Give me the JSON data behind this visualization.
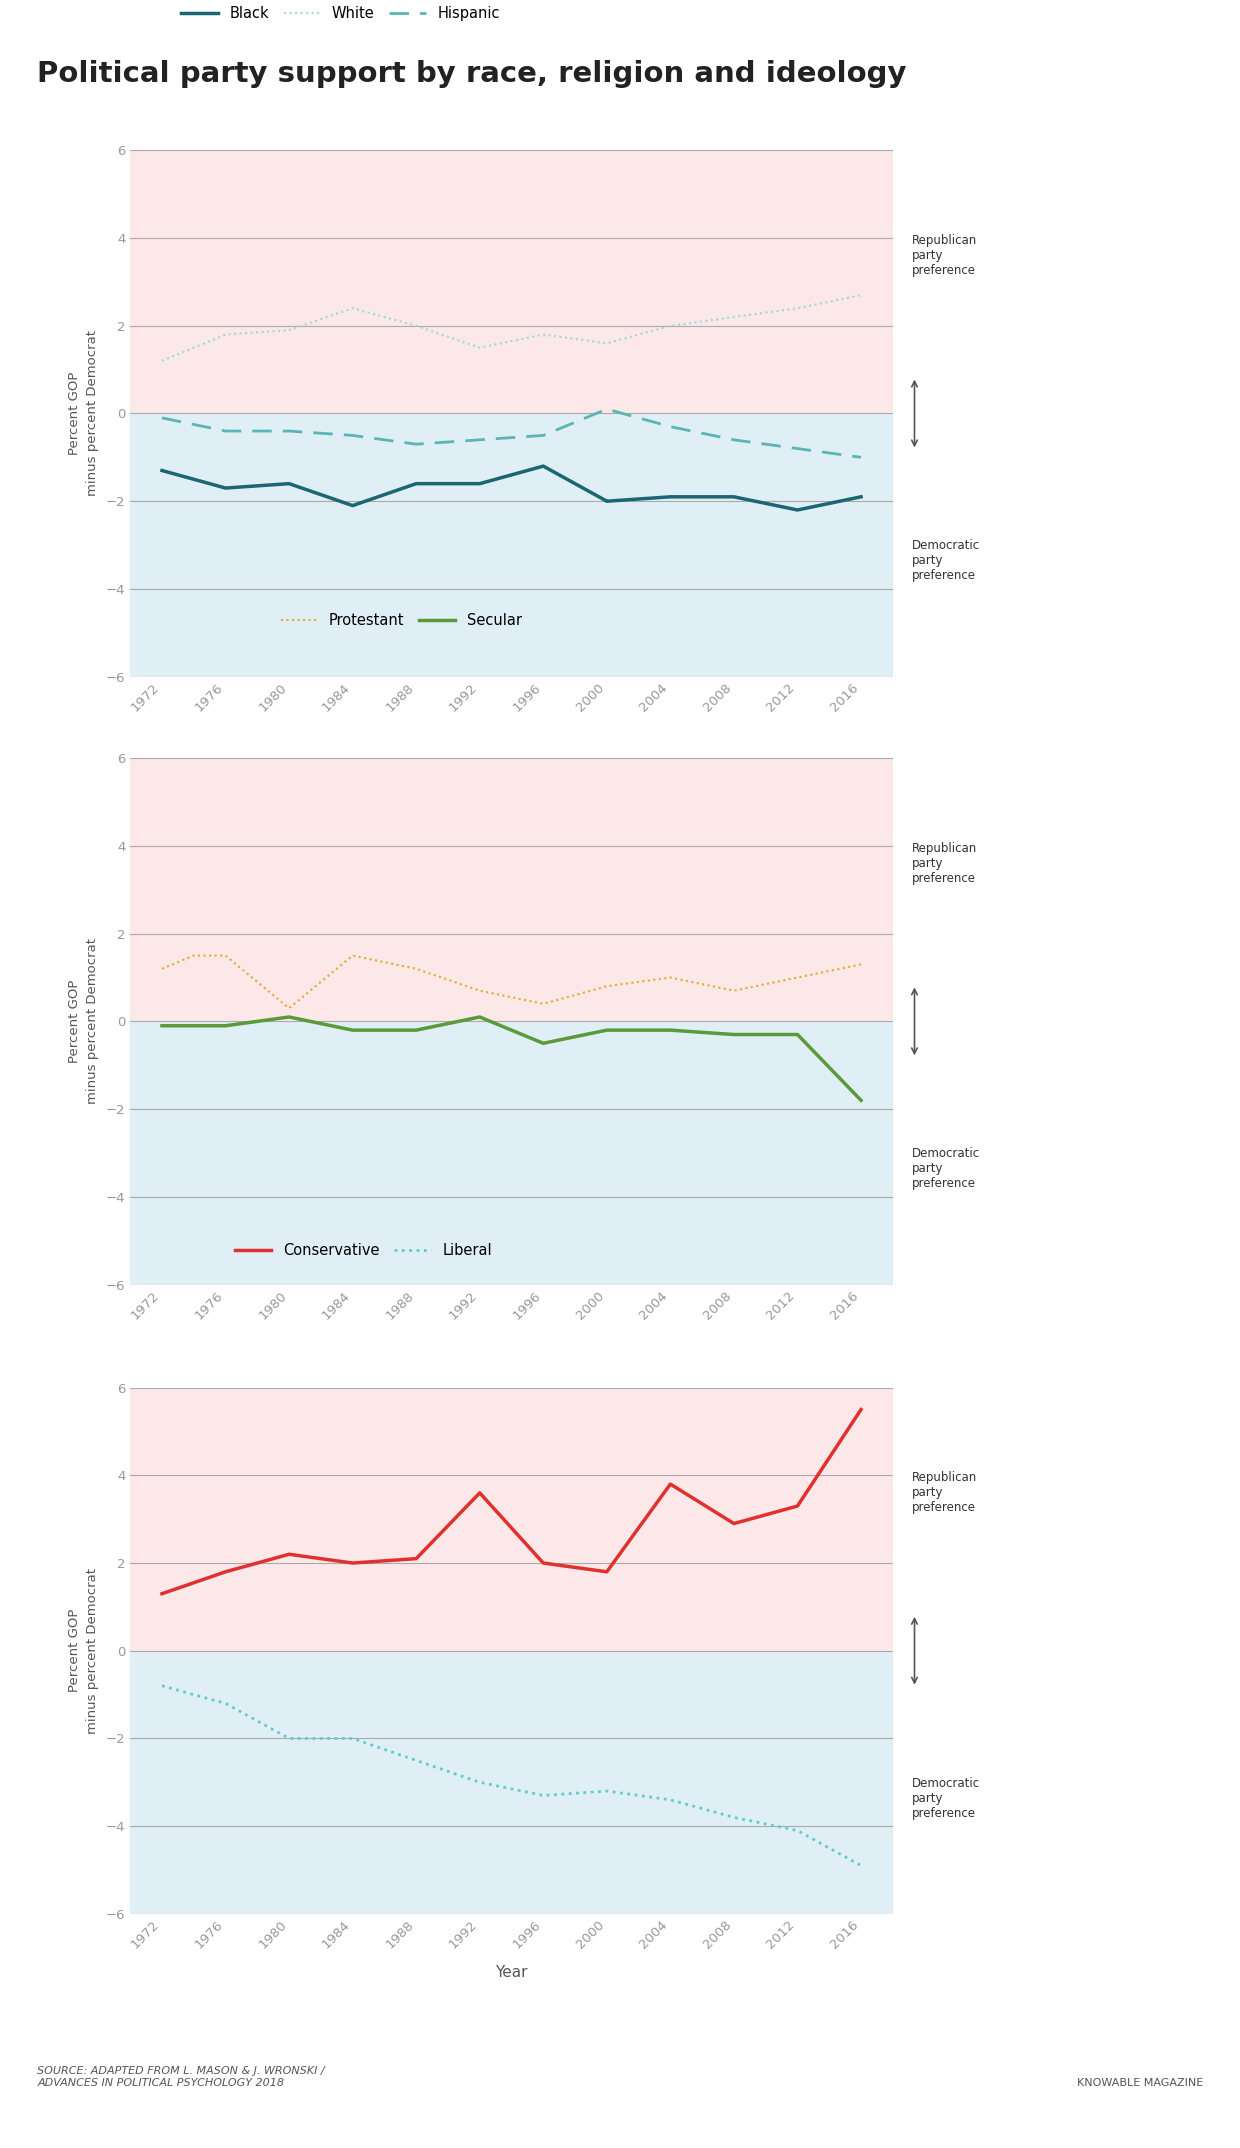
{
  "title": "Political party support by race, religion and ideology",
  "ylabel": "Percent GOP\nminus percent Democrat",
  "xlabel": "Year",
  "years": [
    1972,
    1976,
    1980,
    1984,
    1988,
    1992,
    1996,
    2000,
    2004,
    2008,
    2012,
    2016
  ],
  "chart1": {
    "black": [
      -1.3,
      -1.7,
      -1.6,
      -2.1,
      -1.6,
      -1.6,
      -1.2,
      -2.0,
      -1.9,
      -1.9,
      -2.2,
      -1.9
    ],
    "white": [
      1.2,
      1.8,
      1.9,
      2.4,
      2.0,
      1.5,
      1.8,
      1.6,
      2.0,
      2.2,
      2.4,
      2.7
    ],
    "hispanic": [
      -0.1,
      -0.4,
      -0.4,
      -0.5,
      -0.7,
      -0.6,
      -0.5,
      0.1,
      -0.3,
      -0.6,
      -0.8,
      -1.0
    ]
  },
  "chart2": {
    "protestant_years": [
      1972,
      1974,
      1976,
      1978,
      1980,
      1984,
      1988,
      1992,
      1996,
      2000,
      2004,
      2008,
      2012,
      2016
    ],
    "protestant": [
      1.2,
      1.5,
      1.5,
      0.9,
      0.3,
      1.5,
      1.2,
      0.7,
      0.4,
      0.8,
      1.0,
      0.7,
      1.0,
      1.3
    ],
    "secular_years": [
      1972,
      1976,
      1980,
      1984,
      1988,
      1992,
      1996,
      2000,
      2004,
      2008,
      2012,
      2016
    ],
    "secular": [
      -0.1,
      -0.1,
      0.1,
      -0.2,
      -0.2,
      0.1,
      -0.5,
      -0.2,
      -0.2,
      -0.3,
      -0.3,
      -1.8
    ]
  },
  "chart3": {
    "conservative_years": [
      1972,
      1976,
      1980,
      1984,
      1988,
      1992,
      1996,
      2000,
      2004,
      2008,
      2012,
      2016
    ],
    "conservative": [
      1.3,
      1.8,
      2.2,
      2.0,
      2.1,
      3.6,
      2.0,
      1.8,
      3.8,
      2.9,
      3.3,
      5.5
    ],
    "liberal_years": [
      1972,
      1976,
      1980,
      1984,
      1988,
      1992,
      1996,
      2000,
      2004,
      2008,
      2012,
      2016
    ],
    "liberal": [
      -0.8,
      -1.2,
      -2.0,
      -2.0,
      -2.5,
      -3.0,
      -3.3,
      -3.2,
      -3.4,
      -3.8,
      -4.1,
      -4.9
    ]
  },
  "colors": {
    "black_line": "#1a6672",
    "white_line": "#a0d8d8",
    "hispanic_line": "#5bb5b5",
    "protestant_line": "#e8a830",
    "secular_line": "#5a9a3a",
    "conservative_line": "#e03030",
    "liberal_line": "#60cccc",
    "pink_bg": "#fce8e8",
    "blue_bg": "#e0eff5",
    "grid_color": "#aaaaaa"
  },
  "source_text": "SOURCE: ADAPTED FROM L. MASON & J. WRONSKI /\nADVANCES IN POLITICAL PSYCHOLOGY 2018",
  "credit_text": "KNOWABLE MAGAZINE",
  "top_bar_color": "#b0d8d8"
}
